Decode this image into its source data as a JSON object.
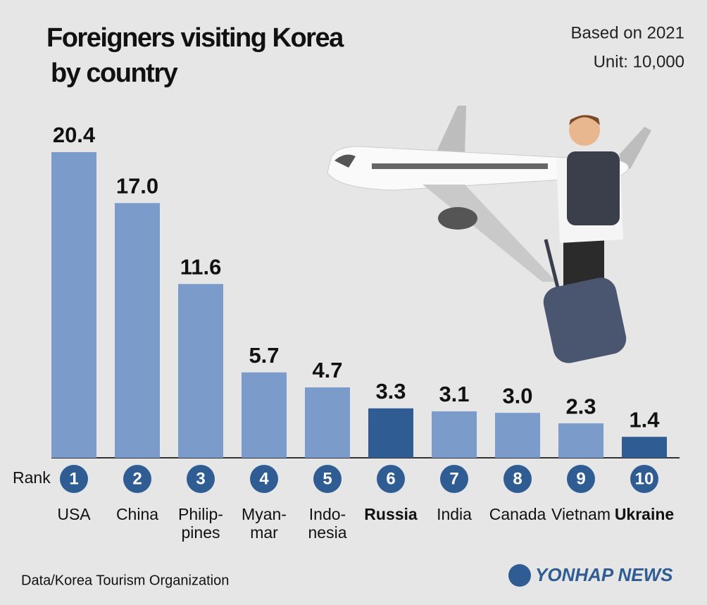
{
  "title": [
    "Foreigners visiting Korea",
    "by country"
  ],
  "subtitle": [
    "Based on 2021",
    "Unit: 10,000"
  ],
  "source": "Data/Korea Tourism Organization",
  "logo": "YONHAP NEWS",
  "chart_data": {
    "type": "bar",
    "categories": [
      "USA",
      "China",
      "Philip-\npines",
      "Myan-\nmar",
      "Indo-\nnesia",
      "Russia",
      "India",
      "Canada",
      "Vietnam",
      "Ukraine"
    ],
    "values": [
      20.4,
      17.0,
      11.6,
      5.7,
      4.7,
      3.3,
      3.1,
      3.0,
      2.3,
      1.4
    ],
    "value_labels": [
      "20.4",
      "17.0",
      "11.6",
      "5.7",
      "4.7",
      "3.3",
      "3.1",
      "3.0",
      "2.3",
      "1.4"
    ],
    "rank_label": "Rank",
    "ranks": [
      1,
      2,
      3,
      4,
      5,
      6,
      7,
      8,
      9,
      10
    ],
    "color": "#7b9ccb",
    "highlight_color": "#2f5d93",
    "highlighted": [
      false,
      false,
      false,
      false,
      false,
      true,
      false,
      false,
      false,
      true
    ]
  }
}
